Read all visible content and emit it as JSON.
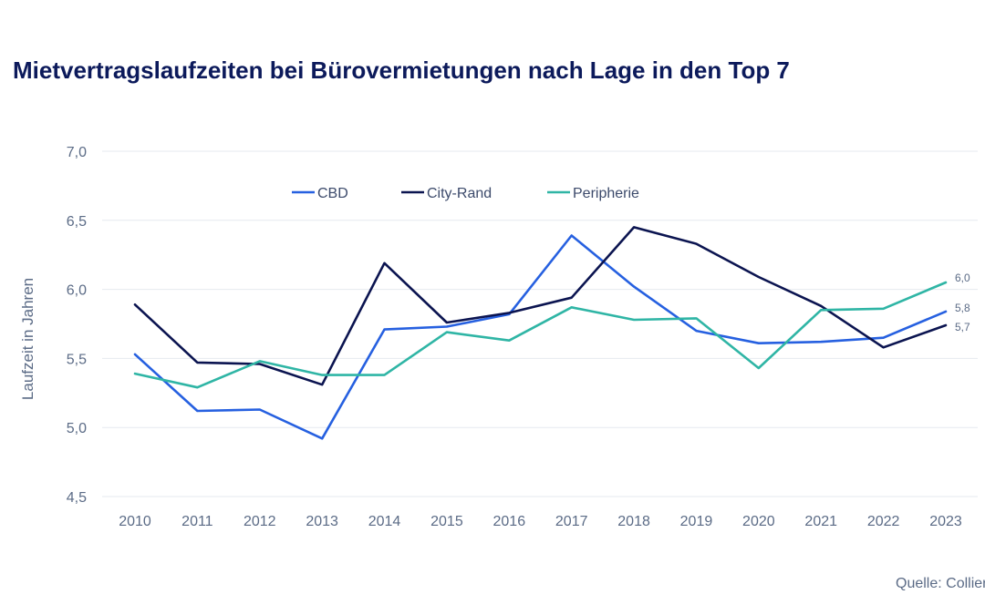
{
  "chart_data": {
    "type": "line",
    "title": "Mietvertragslaufzeiten bei Bürovermietungen nach Lage in den Top 7",
    "xlabel": "",
    "ylabel": "Laufzeit in Jahren",
    "ylim": [
      4.5,
      7.0
    ],
    "yticks": [
      4.5,
      5.0,
      5.5,
      6.0,
      6.5,
      7.0
    ],
    "ytick_labels": [
      "4,5",
      "5,0",
      "5,5",
      "6,0",
      "6,5",
      "7,0"
    ],
    "grid": true,
    "legend_position": "top",
    "categories": [
      "2010",
      "2011",
      "2012",
      "2013",
      "2014",
      "2015",
      "2016",
      "2017",
      "2018",
      "2019",
      "2020",
      "2021",
      "2022",
      "2023"
    ],
    "series": [
      {
        "name": "CBD",
        "color": "#2660e0",
        "values": [
          5.53,
          5.12,
          5.13,
          4.92,
          5.71,
          5.73,
          5.82,
          6.39,
          6.02,
          5.7,
          5.61,
          5.62,
          5.65,
          5.84
        ],
        "end_label": "5,8"
      },
      {
        "name": "City-Rand",
        "color": "#0b1450",
        "values": [
          5.89,
          5.47,
          5.46,
          5.31,
          6.19,
          5.76,
          5.83,
          5.94,
          6.45,
          6.33,
          6.09,
          5.88,
          5.58,
          5.74
        ],
        "end_label": "5,7"
      },
      {
        "name": "Peripherie",
        "color": "#2fb5a5",
        "values": [
          5.39,
          5.29,
          5.48,
          5.38,
          5.38,
          5.69,
          5.63,
          5.87,
          5.78,
          5.79,
          5.43,
          5.85,
          5.86,
          6.05
        ],
        "end_label": "6,0"
      }
    ]
  },
  "source": "Quelle: Colliers"
}
